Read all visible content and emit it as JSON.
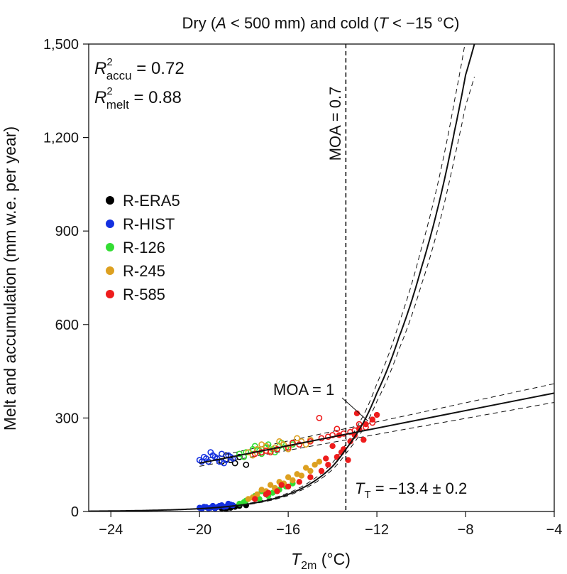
{
  "chart_data": {
    "type": "scatter",
    "title": {
      "prefix": "Dry (",
      "a_var": "A",
      "a_cond": " < 500 mm) and cold (",
      "t_var": "T",
      "t_cond": " < −15 °C)"
    },
    "xlabel": {
      "var": "T",
      "sub": "2m",
      "unit": " (°C)"
    },
    "ylabel": "Melt and accumulation (mm w.e. per year)",
    "xlim": [
      -25,
      -4
    ],
    "ylim": [
      0,
      1500
    ],
    "xticks": [
      -24,
      -20,
      -16,
      -12,
      -8,
      -4
    ],
    "xtick_labels": [
      "−24",
      "−20",
      "−16",
      "−12",
      "−8",
      "−4"
    ],
    "yticks": [
      0,
      300,
      600,
      900,
      1200,
      1500
    ],
    "ytick_labels": [
      "0",
      "300",
      "600",
      "900",
      "1,200",
      "1,500"
    ],
    "stats": {
      "r2_accu": {
        "base": "R",
        "sup": "2",
        "sub": "accu",
        "value": " = 0.72"
      },
      "r2_melt": {
        "base": "R",
        "sup": "2",
        "sub": "melt",
        "value": " = 0.88"
      }
    },
    "legend": {
      "position": "center-left",
      "entries": [
        {
          "label": "R-ERA5",
          "color": "#000000"
        },
        {
          "label": "R-HIST",
          "color": "#1430e0"
        },
        {
          "label": "R-126",
          "color": "#33dd33"
        },
        {
          "label": "R-245",
          "color": "#dda020"
        },
        {
          "label": "R-585",
          "color": "#ee1c1c"
        }
      ]
    },
    "annotations": {
      "moa_07": {
        "label": "MOA = 0.7",
        "x": -13.4
      },
      "moa_1": {
        "label": "MOA = 1",
        "x": -12.4,
        "y": 290
      },
      "threshold": {
        "var": "T",
        "sub": "T",
        "text": " = −13.4 ± 0.2"
      }
    },
    "series": [
      {
        "name": "R-ERA5",
        "color": "#000000",
        "accumulation": [
          [
            -19.0,
            160
          ],
          [
            -18.6,
            165
          ],
          [
            -18.2,
            175
          ],
          [
            -17.9,
            150
          ],
          [
            -18.8,
            180
          ],
          [
            -18.4,
            155
          ]
        ],
        "melt": [
          [
            -19.0,
            10
          ],
          [
            -18.6,
            12
          ],
          [
            -18.2,
            18
          ],
          [
            -17.9,
            20
          ],
          [
            -18.8,
            8
          ],
          [
            -18.4,
            15
          ]
        ]
      },
      {
        "name": "R-HIST",
        "color": "#1430e0",
        "accumulation": [
          [
            -20.0,
            165
          ],
          [
            -19.8,
            175
          ],
          [
            -19.6,
            160
          ],
          [
            -19.4,
            180
          ],
          [
            -19.2,
            170
          ],
          [
            -19.0,
            185
          ],
          [
            -18.8,
            165
          ],
          [
            -18.6,
            175
          ],
          [
            -19.9,
            160
          ],
          [
            -19.5,
            190
          ],
          [
            -19.1,
            160
          ],
          [
            -18.7,
            180
          ],
          [
            -18.5,
            170
          ],
          [
            -19.3,
            175
          ],
          [
            -18.9,
            155
          ],
          [
            -19.7,
            170
          ]
        ],
        "melt": [
          [
            -20.0,
            12
          ],
          [
            -19.8,
            15
          ],
          [
            -19.6,
            10
          ],
          [
            -19.4,
            18
          ],
          [
            -19.2,
            14
          ],
          [
            -19.0,
            20
          ],
          [
            -18.8,
            16
          ],
          [
            -18.6,
            22
          ],
          [
            -19.9,
            8
          ],
          [
            -19.5,
            12
          ],
          [
            -19.1,
            18
          ],
          [
            -18.7,
            25
          ],
          [
            -18.5,
            20
          ],
          [
            -19.3,
            10
          ],
          [
            -18.9,
            15
          ],
          [
            -19.7,
            14
          ]
        ]
      },
      {
        "name": "R-126",
        "color": "#33dd33",
        "accumulation": [
          [
            -18.2,
            185
          ],
          [
            -17.9,
            190
          ],
          [
            -17.6,
            200
          ],
          [
            -17.3,
            195
          ],
          [
            -17.0,
            205
          ],
          [
            -16.7,
            200
          ],
          [
            -16.4,
            210
          ],
          [
            -16.1,
            205
          ],
          [
            -15.8,
            215
          ],
          [
            -18.0,
            175
          ],
          [
            -17.5,
            210
          ],
          [
            -17.2,
            185
          ],
          [
            -16.9,
            215
          ],
          [
            -16.6,
            190
          ],
          [
            -16.3,
            220
          ]
        ],
        "melt": [
          [
            -18.2,
            25
          ],
          [
            -17.9,
            35
          ],
          [
            -17.6,
            45
          ],
          [
            -17.3,
            40
          ],
          [
            -17.0,
            55
          ],
          [
            -16.7,
            60
          ],
          [
            -16.4,
            70
          ],
          [
            -16.1,
            80
          ],
          [
            -15.8,
            90
          ],
          [
            -18.0,
            30
          ],
          [
            -17.5,
            50
          ],
          [
            -17.2,
            65
          ],
          [
            -16.9,
            50
          ],
          [
            -16.6,
            75
          ],
          [
            -16.3,
            85
          ]
        ]
      },
      {
        "name": "R-245",
        "color": "#dda020",
        "accumulation": [
          [
            -17.8,
            190
          ],
          [
            -17.4,
            200
          ],
          [
            -17.0,
            210
          ],
          [
            -16.6,
            205
          ],
          [
            -16.2,
            215
          ],
          [
            -15.8,
            220
          ],
          [
            -15.4,
            225
          ],
          [
            -15.0,
            230
          ],
          [
            -17.6,
            180
          ],
          [
            -17.2,
            215
          ],
          [
            -16.8,
            195
          ],
          [
            -16.4,
            225
          ],
          [
            -16.0,
            200
          ],
          [
            -15.6,
            235
          ],
          [
            -15.2,
            215
          ]
        ],
        "melt": [
          [
            -17.8,
            40
          ],
          [
            -17.4,
            55
          ],
          [
            -17.0,
            65
          ],
          [
            -16.6,
            75
          ],
          [
            -16.2,
            90
          ],
          [
            -15.8,
            100
          ],
          [
            -15.4,
            115
          ],
          [
            -15.0,
            130
          ],
          [
            -17.6,
            45
          ],
          [
            -17.2,
            70
          ],
          [
            -16.8,
            85
          ],
          [
            -16.4,
            95
          ],
          [
            -16.0,
            110
          ],
          [
            -15.6,
            120
          ],
          [
            -15.2,
            140
          ],
          [
            -14.8,
            150
          ],
          [
            -14.6,
            160
          ]
        ]
      },
      {
        "name": "R-585",
        "color": "#ee1c1c",
        "accumulation": [
          [
            -17.5,
            185
          ],
          [
            -17.0,
            195
          ],
          [
            -16.5,
            200
          ],
          [
            -16.0,
            205
          ],
          [
            -15.5,
            215
          ],
          [
            -15.0,
            225
          ],
          [
            -14.5,
            235
          ],
          [
            -14.0,
            245
          ],
          [
            -13.5,
            250
          ],
          [
            -13.0,
            260
          ],
          [
            -12.5,
            270
          ],
          [
            -12.2,
            285
          ],
          [
            -14.6,
            300
          ],
          [
            -13.2,
            255
          ],
          [
            -12.8,
            280
          ],
          [
            -15.8,
            220
          ],
          [
            -16.8,
            190
          ],
          [
            -17.2,
            190
          ],
          [
            -14.2,
            240
          ],
          [
            -13.8,
            265
          ]
        ],
        "melt": [
          [
            -17.5,
            40
          ],
          [
            -17.0,
            55
          ],
          [
            -16.5,
            65
          ],
          [
            -16.0,
            80
          ],
          [
            -15.5,
            95
          ],
          [
            -15.0,
            110
          ],
          [
            -14.5,
            130
          ],
          [
            -14.2,
            150
          ],
          [
            -13.8,
            175
          ],
          [
            -13.5,
            200
          ],
          [
            -13.2,
            225
          ],
          [
            -13.0,
            245
          ],
          [
            -12.8,
            265
          ],
          [
            -12.5,
            280
          ],
          [
            -12.2,
            295
          ],
          [
            -12.0,
            310
          ],
          [
            -12.9,
            315
          ],
          [
            -13.6,
            190
          ],
          [
            -14.0,
            210
          ],
          [
            -14.3,
            170
          ],
          [
            -13.3,
            165
          ],
          [
            -12.6,
            230
          ],
          [
            -13.7,
            245
          ],
          [
            -16.3,
            85
          ],
          [
            -16.9,
            60
          ]
        ]
      }
    ],
    "fits": {
      "accumulation": {
        "x": [
          -20,
          -4
        ],
        "y": [
          155,
          380
        ],
        "ci_upper": [
          165,
          410
        ],
        "ci_lower": [
          145,
          350
        ]
      },
      "melt": {
        "x": [
          -25,
          -22,
          -20,
          -18,
          -16,
          -14,
          -13.4,
          -12.5,
          -12,
          -11,
          -10,
          -9,
          -8.5,
          -8,
          -7.6
        ],
        "y": [
          1,
          4,
          9,
          22,
          55,
          145,
          200,
          300,
          380,
          560,
          780,
          1050,
          1220,
          1400,
          1500
        ]
      }
    }
  }
}
